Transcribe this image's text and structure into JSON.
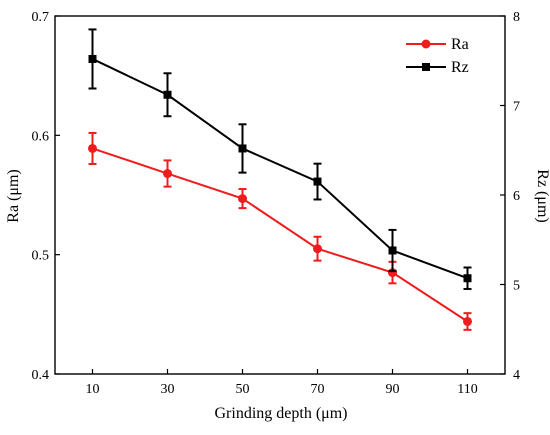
{
  "chart_data": {
    "type": "line",
    "x": [
      10,
      30,
      50,
      70,
      90,
      110
    ],
    "xlabel": "Grinding depth (μm)",
    "ylabel_left": "Ra (μm)",
    "ylabel_right": "Rz (μm)",
    "ylim_left": [
      0.4,
      0.7
    ],
    "ylim_right": [
      4,
      8
    ],
    "yticks_left": [
      "0.4",
      "0.5",
      "0.6",
      "0.7"
    ],
    "yticks_right": [
      "4",
      "5",
      "6",
      "7",
      "8"
    ],
    "xticks": [
      "10",
      "30",
      "50",
      "70",
      "90",
      "110"
    ],
    "grid": false,
    "legend_placement": "top-right",
    "series": [
      {
        "name": "Ra",
        "axis": "left",
        "color": "#ee1c1c",
        "marker": "circle",
        "values": [
          0.589,
          0.568,
          0.547,
          0.505,
          0.485,
          0.444
        ],
        "errors": [
          0.013,
          0.011,
          0.008,
          0.01,
          0.009,
          0.007
        ]
      },
      {
        "name": "Rz",
        "axis": "right",
        "color": "#000000",
        "marker": "square",
        "values": [
          7.52,
          7.12,
          6.52,
          6.15,
          5.38,
          5.07
        ],
        "errors": [
          0.33,
          0.24,
          0.27,
          0.2,
          0.23,
          0.12
        ]
      }
    ]
  }
}
